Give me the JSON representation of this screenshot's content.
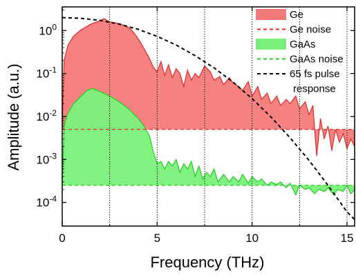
{
  "chart_data": {
    "type": "area",
    "xlabel": "Frequency (THz)",
    "ylabel": "Amplitude (a.u.)",
    "xlim": [
      0,
      15.4
    ],
    "ylim_log10": [
      -4.55,
      0.55
    ],
    "y_scale": "log",
    "x_ticks": [
      {
        "value": 0,
        "label": "0"
      },
      {
        "value": 5,
        "label": "5"
      },
      {
        "value": 10,
        "label": "10"
      },
      {
        "value": 15,
        "label": "15"
      }
    ],
    "y_ticks": [
      {
        "exp": 0,
        "base": "10",
        "sup": "0"
      },
      {
        "exp": -1,
        "base": "10",
        "sup": "-1"
      },
      {
        "exp": -2,
        "base": "10",
        "sup": "-2"
      },
      {
        "exp": -3,
        "base": "10",
        "sup": "-3"
      },
      {
        "exp": -4,
        "base": "10",
        "sup": "-4"
      }
    ],
    "vertical_dotted_lines": [
      2.5,
      5,
      7.5,
      10,
      12.5,
      15
    ],
    "legend_position": "top-right",
    "legend": [
      {
        "label": "Ge",
        "kind": "fill",
        "color": "#f47a7a"
      },
      {
        "label": "Ge noise",
        "kind": "dash",
        "color": "#e8242a"
      },
      {
        "label": "GaAs",
        "kind": "fill",
        "color": "#7af07a"
      },
      {
        "label": "GaAs noise",
        "kind": "dash",
        "color": "#22cc22"
      },
      {
        "label": "65 fs pulse",
        "label2": "response",
        "kind": "dash",
        "color": "#000000"
      }
    ],
    "series": [
      {
        "name": "Ge",
        "fill_color": "#f47a7a",
        "line_color": "#e22a2a",
        "x": [
          0,
          0.1,
          0.3,
          0.6,
          1.0,
          1.5,
          2.0,
          2.2,
          2.5,
          3.0,
          3.3,
          3.6,
          3.9,
          4.1,
          4.4,
          4.6,
          4.8,
          5.0,
          5.2,
          5.4,
          5.6,
          5.8,
          6.0,
          6.2,
          6.4,
          6.6,
          6.8,
          7.0,
          7.2,
          7.5,
          7.8,
          8.0,
          8.3,
          8.5,
          8.8,
          9.0,
          9.3,
          9.5,
          9.8,
          10.0,
          10.3,
          10.5,
          10.8,
          11.0,
          11.3,
          11.5,
          11.8,
          12.0,
          12.3,
          12.5,
          12.8,
          13.0,
          13.2,
          13.4,
          13.6,
          13.8,
          14.0,
          14.2,
          14.4,
          14.6,
          14.8,
          15.0,
          15.2,
          15.4
        ],
        "y": [
          0.005,
          0.2,
          0.45,
          0.75,
          1.05,
          1.4,
          1.7,
          1.9,
          1.6,
          1.45,
          1.3,
          1.1,
          0.75,
          0.55,
          0.32,
          0.22,
          0.14,
          0.11,
          0.19,
          0.09,
          0.16,
          0.08,
          0.13,
          0.1,
          0.05,
          0.12,
          0.07,
          0.1,
          0.08,
          0.15,
          0.11,
          0.07,
          0.085,
          0.055,
          0.08,
          0.06,
          0.05,
          0.04,
          0.065,
          0.03,
          0.05,
          0.025,
          0.035,
          0.02,
          0.03,
          0.018,
          0.025,
          0.02,
          0.03,
          0.015,
          0.022,
          0.011,
          0.018,
          0.0012,
          0.009,
          0.003,
          0.006,
          0.0016,
          0.005,
          0.0025,
          0.004,
          0.0018,
          0.003,
          0.002
        ],
        "noise_floor": 0.005
      },
      {
        "name": "GaAs",
        "fill_color": "#7af07a",
        "line_color": "#1fcf1f",
        "x": [
          0,
          0.1,
          0.3,
          0.6,
          1.0,
          1.3,
          1.6,
          2.0,
          2.5,
          3.0,
          3.5,
          4.0,
          4.3,
          4.6,
          4.8,
          5.0,
          5.2,
          5.4,
          5.6,
          5.8,
          6.0,
          6.2,
          6.4,
          6.6,
          6.8,
          7.0,
          7.2,
          7.4,
          7.6,
          7.8,
          8.0,
          8.2,
          8.5,
          8.8,
          9.0,
          9.3,
          9.5,
          9.8,
          10.0,
          10.3,
          10.5,
          10.8,
          11.0,
          11.3,
          11.5,
          11.8,
          12.0,
          12.3,
          12.5,
          12.8,
          13.0,
          13.3,
          13.5,
          13.8,
          14.0,
          14.3,
          14.5,
          14.8,
          15.0,
          15.2,
          15.4
        ],
        "y": [
          0.00025,
          0.006,
          0.012,
          0.02,
          0.03,
          0.04,
          0.045,
          0.038,
          0.03,
          0.022,
          0.015,
          0.009,
          0.006,
          0.0035,
          0.0015,
          0.0008,
          0.0009,
          0.0006,
          0.0009,
          0.0007,
          0.001,
          0.0005,
          0.0008,
          0.0006,
          0.0009,
          0.0004,
          0.0007,
          0.00035,
          0.0005,
          0.0004,
          0.0006,
          0.0003,
          0.00045,
          0.0003,
          0.0004,
          0.0003,
          0.00045,
          0.00028,
          0.0004,
          0.0003,
          0.00035,
          0.00025,
          0.0003,
          0.00026,
          0.0003,
          0.00022,
          0.00028,
          0.00015,
          0.00025,
          0.0002,
          0.00022,
          0.00016,
          0.0002,
          0.00018,
          0.00022,
          0.00015,
          0.0002,
          0.00018,
          0.00025,
          0.00016,
          0.0002
        ],
        "noise_floor": 0.00025
      },
      {
        "name": "65 fs pulse response",
        "line_color": "#000000",
        "x": [
          0,
          1,
          2,
          3,
          4,
          5,
          6,
          7,
          8,
          9,
          10,
          11,
          12,
          13,
          14,
          15,
          15.4
        ],
        "y": [
          2.0,
          1.92,
          1.72,
          1.41,
          1.07,
          0.73,
          0.46,
          0.26,
          0.135,
          0.063,
          0.026,
          0.0097,
          0.0032,
          0.00095,
          0.00025,
          6e-05,
          4e-05
        ]
      }
    ]
  }
}
